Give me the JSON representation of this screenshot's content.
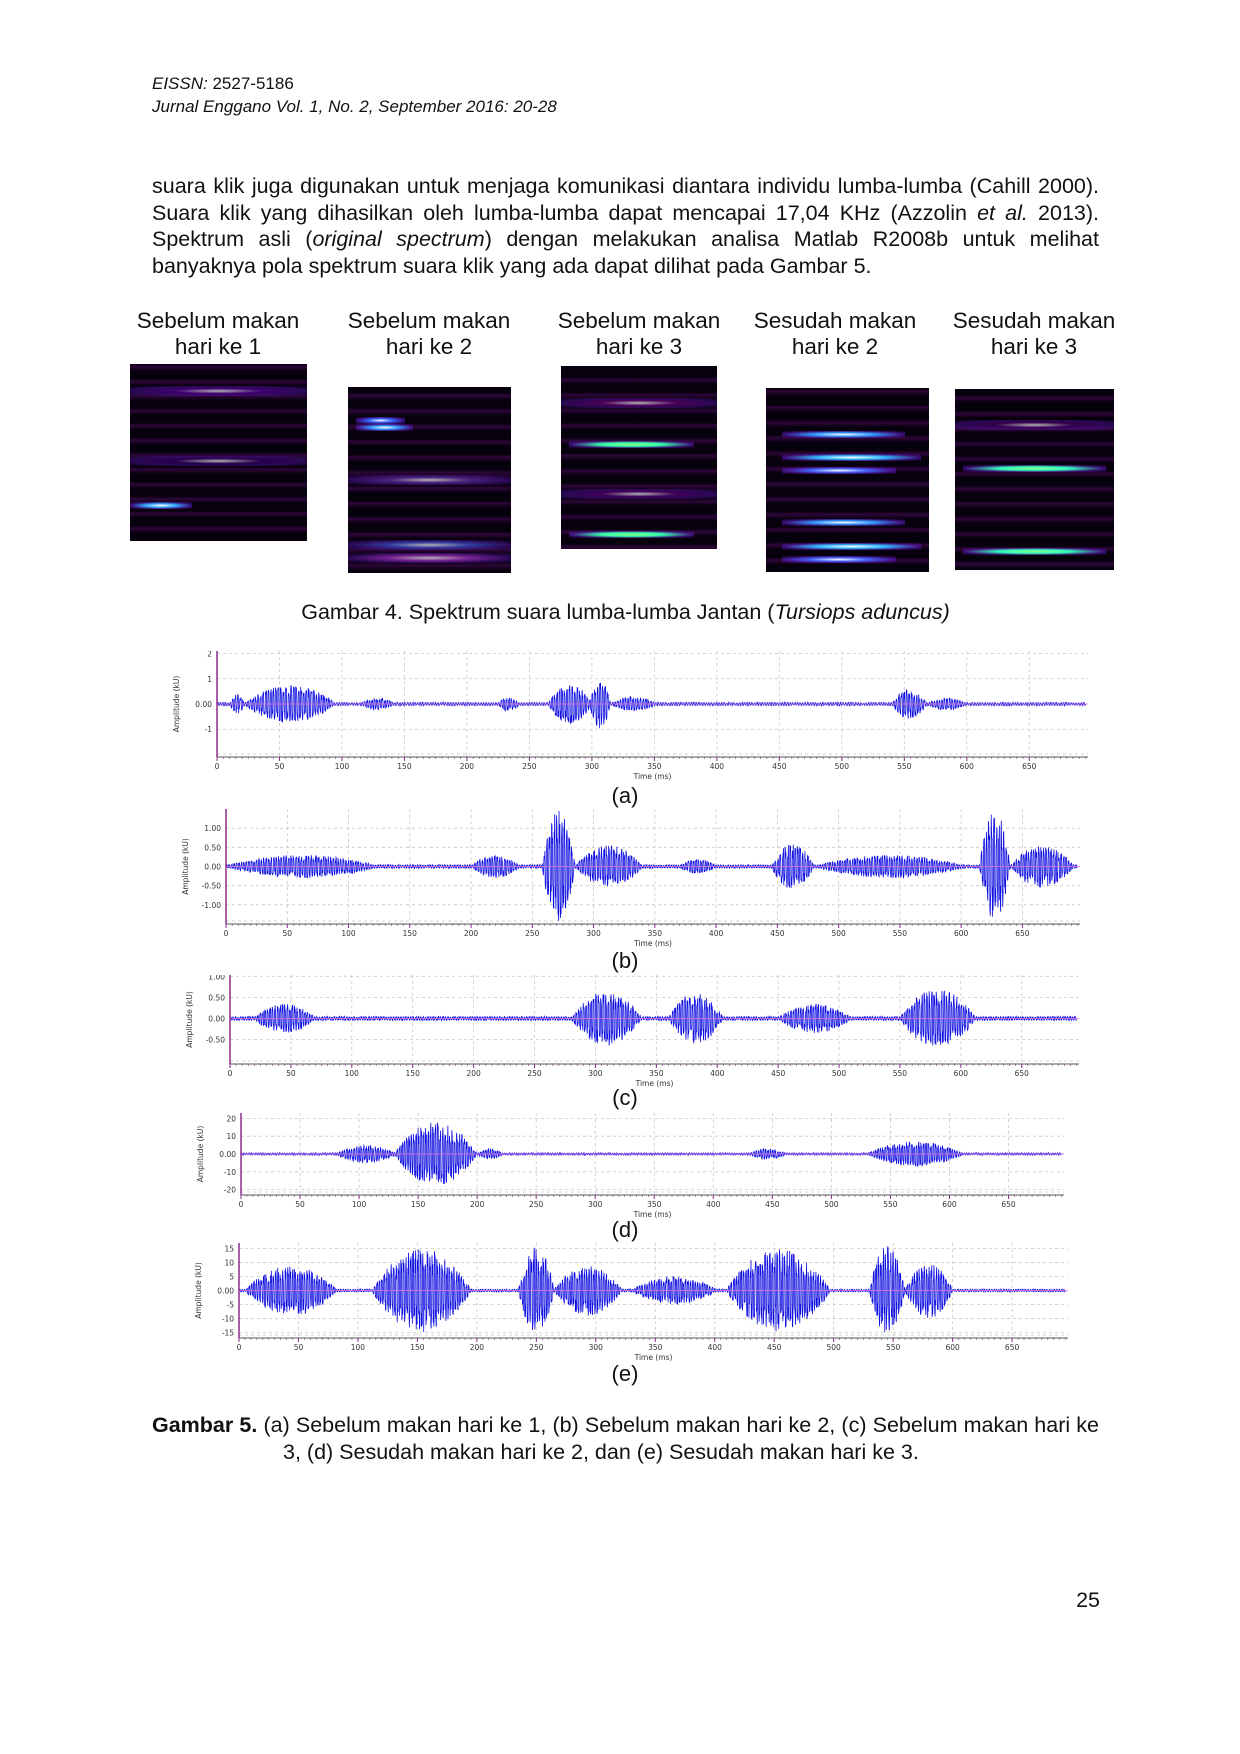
{
  "header": {
    "eissn_label": "EISSN:",
    "eissn_value": " 2527-5186",
    "journal": "Jurnal Enggano Vol. 1, No. 2, September 2016: 20-28"
  },
  "paragraph": {
    "t1": "suara klik juga digunakan untuk menjaga komunikasi diantara individu lumba-lumba (Cahill 2000). Suara klik yang dihasilkan oleh lumba-lumba dapat mencapai 17,04 KHz (Azzolin ",
    "i1": "et al.",
    "t2": " 2013). Spektrum asli (",
    "i2": "original spectrum",
    "t3": ") dengan melakukan  analisa Matlab R2008b untuk melihat banyaknya pola spektrum suara klik yang ada dapat dilihat pada Gambar 5."
  },
  "figure4": {
    "panels": [
      {
        "label": "Sebelum makan hari ke 1"
      },
      {
        "label": "Sebelum makan hari ke 2"
      },
      {
        "label": "Sebelum makan hari ke 3"
      },
      {
        "label": "Sesudah makan hari ke 2"
      },
      {
        "label": "Sesudah makan hari ke 3"
      }
    ],
    "caption_prefix": "Gambar 4. Spektrum suara lumba-lumba Jantan (",
    "caption_italic": "Tursiops aduncus)"
  },
  "colors": {
    "waveform": "#1010e0",
    "zero_line": "#e070e0",
    "axis": "#8a2a8a",
    "grid": "#c8c8c8"
  },
  "chart_data": [
    {
      "type": "line",
      "panel_label": "(a)",
      "xlabel": "Time (ms)",
      "ylabel": "Amplitude (kU)",
      "xlim": [
        0,
        697
      ],
      "ylim": [
        -2.1,
        2.1
      ],
      "xticks": [
        "0",
        "50",
        "100",
        "150",
        "200",
        "250",
        "300",
        "350",
        "400",
        "450",
        "500",
        "550",
        "600",
        "650"
      ],
      "yticks": [
        {
          "v": 2,
          "t": "2"
        },
        {
          "v": 1,
          "t": "1"
        },
        {
          "v": 0,
          "t": "0.00"
        },
        {
          "v": -1,
          "t": "-1"
        }
      ],
      "grid": true,
      "baseline": 0.04,
      "bursts": [
        {
          "start": 10,
          "end": 22,
          "peak": 0.4
        },
        {
          "start": 22,
          "end": 95,
          "peak": 0.75
        },
        {
          "start": 115,
          "end": 142,
          "peak": 0.25
        },
        {
          "start": 225,
          "end": 242,
          "peak": 0.3
        },
        {
          "start": 265,
          "end": 300,
          "peak": 0.8
        },
        {
          "start": 298,
          "end": 315,
          "peak": 1.0
        },
        {
          "start": 315,
          "end": 352,
          "peak": 0.3
        },
        {
          "start": 540,
          "end": 568,
          "peak": 0.6
        },
        {
          "start": 568,
          "end": 600,
          "peak": 0.25
        }
      ]
    },
    {
      "type": "line",
      "panel_label": "(b)",
      "xlabel": "Time (ms)",
      "ylabel": "Amplitude (kU)",
      "xlim": [
        0,
        697
      ],
      "ylim": [
        -1.5,
        1.5
      ],
      "xticks": [
        "0",
        "50",
        "100",
        "150",
        "200",
        "250",
        "300",
        "350",
        "400",
        "450",
        "500",
        "550",
        "600",
        "650"
      ],
      "yticks": [
        {
          "v": 1,
          "t": "1.00"
        },
        {
          "v": 0.5,
          "t": "0.50"
        },
        {
          "v": 0,
          "t": "0.00"
        },
        {
          "v": -0.5,
          "t": "-0.50"
        },
        {
          "v": -1,
          "t": "-1.00"
        }
      ],
      "grid": true,
      "baseline": 0.03,
      "bursts": [
        {
          "start": 0,
          "end": 125,
          "peak": 0.3
        },
        {
          "start": 200,
          "end": 240,
          "peak": 0.3
        },
        {
          "start": 258,
          "end": 285,
          "peak": 1.45
        },
        {
          "start": 285,
          "end": 340,
          "peak": 0.55
        },
        {
          "start": 370,
          "end": 400,
          "peak": 0.2
        },
        {
          "start": 445,
          "end": 480,
          "peak": 0.6
        },
        {
          "start": 480,
          "end": 605,
          "peak": 0.3
        },
        {
          "start": 615,
          "end": 640,
          "peak": 1.45
        },
        {
          "start": 640,
          "end": 692,
          "peak": 0.55
        }
      ]
    },
    {
      "type": "line",
      "panel_label": "(c)",
      "xlabel": "Time (ms)",
      "ylabel": "Amplitude (kU)",
      "xlim": [
        0,
        697
      ],
      "ylim": [
        -1.08,
        1.03
      ],
      "xticks": [
        "0",
        "50",
        "100",
        "150",
        "200",
        "250",
        "300",
        "350",
        "400",
        "450",
        "500",
        "550",
        "600",
        "650"
      ],
      "yticks": [
        {
          "v": 1,
          "t": "1.00"
        },
        {
          "v": 0.5,
          "t": "0.50"
        },
        {
          "v": 0,
          "t": "0.00"
        },
        {
          "v": -0.5,
          "t": "-0.50"
        }
      ],
      "grid": true,
      "baseline": 0.03,
      "bursts": [
        {
          "start": 20,
          "end": 70,
          "peak": 0.35
        },
        {
          "start": 280,
          "end": 338,
          "peak": 0.65
        },
        {
          "start": 360,
          "end": 405,
          "peak": 0.6
        },
        {
          "start": 450,
          "end": 510,
          "peak": 0.35
        },
        {
          "start": 550,
          "end": 612,
          "peak": 0.7
        }
      ]
    },
    {
      "type": "line",
      "panel_label": "(d)",
      "xlabel": "Time (ms)",
      "ylabel": "Amplitude (kU)",
      "xlim": [
        0,
        697
      ],
      "ylim": [
        -23,
        23
      ],
      "xticks": [
        "0",
        "50",
        "100",
        "150",
        "200",
        "250",
        "300",
        "350",
        "400",
        "450",
        "500",
        "550",
        "600",
        "650"
      ],
      "yticks": [
        {
          "v": 20,
          "t": "20"
        },
        {
          "v": 10,
          "t": "10"
        },
        {
          "v": 0,
          "t": "0.00"
        },
        {
          "v": -10,
          "t": "-10"
        },
        {
          "v": -20,
          "t": "-20"
        }
      ],
      "grid": true,
      "baseline": 0.4,
      "bursts": [
        {
          "start": 80,
          "end": 132,
          "peak": 5
        },
        {
          "start": 130,
          "end": 200,
          "peak": 18
        },
        {
          "start": 200,
          "end": 222,
          "peak": 3
        },
        {
          "start": 430,
          "end": 462,
          "peak": 3
        },
        {
          "start": 530,
          "end": 612,
          "peak": 7
        }
      ]
    },
    {
      "type": "line",
      "panel_label": "(e)",
      "xlabel": "Time (ms)",
      "ylabel": "Amplitude (kU)",
      "xlim": [
        0,
        697
      ],
      "ylim": [
        -17,
        17
      ],
      "xticks": [
        "0",
        "50",
        "100",
        "150",
        "200",
        "250",
        "300",
        "350",
        "400",
        "450",
        "500",
        "550",
        "600",
        "650"
      ],
      "yticks": [
        {
          "v": 15,
          "t": "15"
        },
        {
          "v": 10,
          "t": "10"
        },
        {
          "v": 5,
          "t": "5"
        },
        {
          "v": 0,
          "t": "0.00"
        },
        {
          "v": -5,
          "t": "-5"
        },
        {
          "v": -10,
          "t": "-10"
        },
        {
          "v": -15,
          "t": "-15"
        }
      ],
      "grid": true,
      "baseline": 0.3,
      "bursts": [
        {
          "start": 5,
          "end": 82,
          "peak": 9
        },
        {
          "start": 112,
          "end": 195,
          "peak": 15
        },
        {
          "start": 235,
          "end": 265,
          "peak": 16
        },
        {
          "start": 265,
          "end": 322,
          "peak": 9
        },
        {
          "start": 330,
          "end": 402,
          "peak": 5
        },
        {
          "start": 410,
          "end": 497,
          "peak": 15
        },
        {
          "start": 530,
          "end": 560,
          "peak": 16
        },
        {
          "start": 560,
          "end": 600,
          "peak": 10
        }
      ]
    }
  ],
  "figure5": {
    "caption_bold": "Gambar 5.",
    "caption_text": " (a) Sebelum makan hari ke 1, (b) Sebelum makan hari ke 2, (c) Sebelum makan hari ke 3, (d) Sesudah makan hari ke 2, dan (e) Sesudah makan hari ke 3."
  },
  "page_number": "25"
}
